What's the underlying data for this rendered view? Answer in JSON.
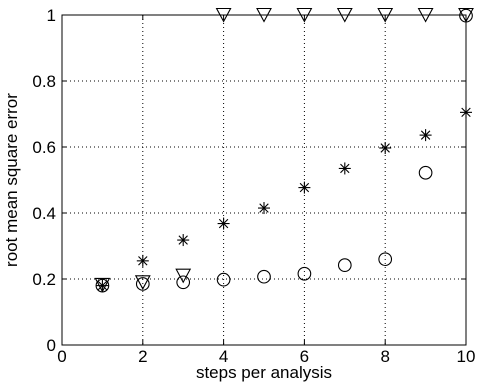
{
  "chart_data": {
    "type": "scatter",
    "title": "",
    "xlabel": "steps per analysis",
    "ylabel": "root mean square error",
    "xlim": [
      0,
      10
    ],
    "ylim": [
      0,
      1
    ],
    "x_ticks": [
      0,
      2,
      4,
      6,
      8,
      10
    ],
    "y_ticks": [
      0,
      0.2,
      0.4,
      0.6,
      0.8,
      1
    ],
    "x_tick_labels": [
      "0",
      "2",
      "4",
      "6",
      "8",
      "10"
    ],
    "y_tick_labels": [
      "0",
      "0.2",
      "0.4",
      "0.6",
      "0.8",
      "1"
    ],
    "grid": true,
    "legend": "none",
    "series": [
      {
        "marker": "star",
        "x": [
          1,
          2,
          3,
          4,
          5,
          6,
          7,
          8,
          9,
          10
        ],
        "y": [
          0.18,
          0.255,
          0.318,
          0.368,
          0.415,
          0.477,
          0.535,
          0.597,
          0.636,
          0.705
        ]
      },
      {
        "marker": "circle",
        "x": [
          1,
          2,
          3,
          4,
          5,
          6,
          7,
          8,
          9,
          10
        ],
        "y": [
          0.18,
          0.185,
          0.19,
          0.198,
          0.207,
          0.216,
          0.242,
          0.26,
          0.522,
          0.998
        ]
      },
      {
        "marker": "triangle-down",
        "x": [
          1,
          2,
          3,
          4,
          5,
          6,
          7,
          8,
          9,
          10
        ],
        "y": [
          0.182,
          0.19,
          0.21,
          1,
          1,
          1,
          1,
          1,
          1,
          1
        ]
      }
    ]
  }
}
